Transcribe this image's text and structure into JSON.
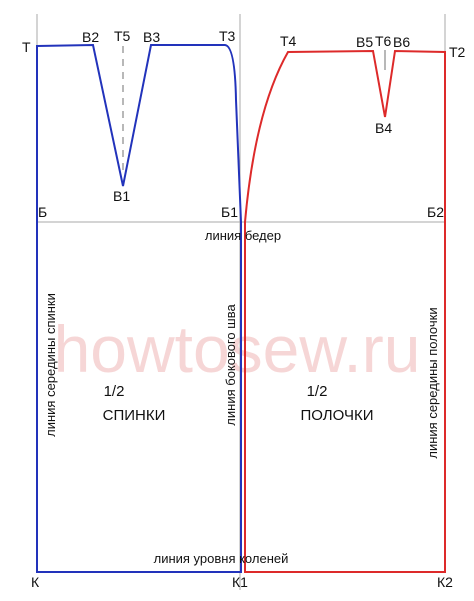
{
  "points": {
    "T": "Т",
    "T2": "Т2",
    "T3": "Т3",
    "T4": "Т4",
    "T5": "Т5",
    "T6": "Т6",
    "B": "Б",
    "B1_hip": "Б1",
    "B2_hip": "Б2",
    "K": "К",
    "K1": "К1",
    "K2": "К2",
    "V1": "В1",
    "V2": "В2",
    "V3": "В3",
    "V4": "В4",
    "V5": "В5",
    "V6": "В6"
  },
  "lines": {
    "hip": "линия бедер",
    "knee": "линия уровня коленей",
    "back_center": "линия середины спинки",
    "side_seam": "линия бокового шва",
    "front_center": "линия середины полочки"
  },
  "parts": {
    "back_fraction": "1/2",
    "back_name": "СПИНКИ",
    "front_fraction": "1/2",
    "front_name": "ПОЛОЧКИ"
  },
  "watermark": "howtosew.ru",
  "colors": {
    "back": "#2233bb",
    "front": "#dd2a2a",
    "grid": "#a8a8a8",
    "dash": "#888888",
    "watermark": "#f6d6d6"
  }
}
